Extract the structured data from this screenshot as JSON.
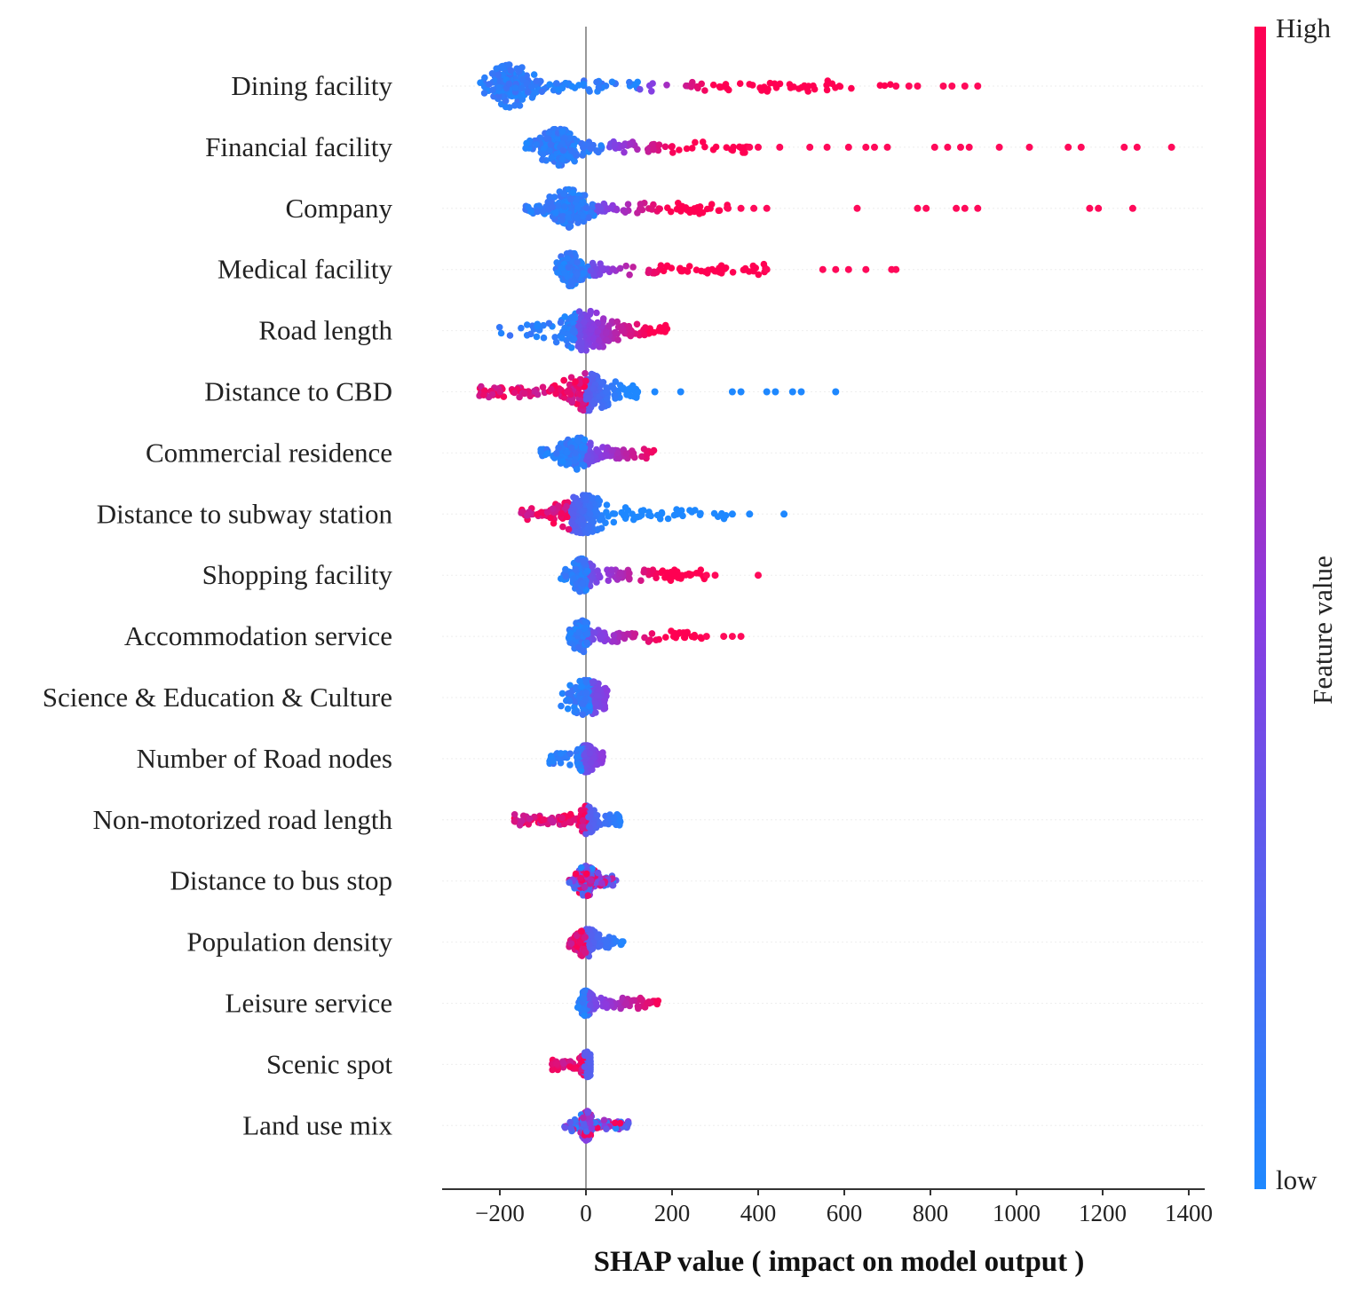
{
  "chart_data": {
    "type": "scatter",
    "subtype": "shap-beeswarm",
    "xlabel": "SHAP  value  ( impact on model output )",
    "xlim": [
      -330,
      1430
    ],
    "xticks": [
      -200,
      0,
      200,
      400,
      600,
      800,
      1000,
      1200,
      1400
    ],
    "xtick_labels": [
      "−200",
      "0",
      "200",
      "400",
      "600",
      "800",
      "1000",
      "1200",
      "1400"
    ],
    "colorbar": {
      "title": "Feature value",
      "high_label": "High",
      "low_label": "low",
      "low_color": "#1e88ff",
      "high_color": "#ff0052"
    },
    "features": [
      {
        "name": "Dining facility",
        "min": -250,
        "max": 920,
        "core": [
          -200,
          -150
        ],
        "width": 1.0,
        "blue_end": 120,
        "direction": "pos",
        "outliers": [
          [
            720,
            1
          ],
          [
            750,
            1
          ],
          [
            770,
            1
          ],
          [
            830,
            1
          ],
          [
            850,
            1
          ],
          [
            880,
            1
          ],
          [
            910,
            1
          ]
        ]
      },
      {
        "name": "Financial facility",
        "min": -140,
        "max": 1360,
        "core": [
          -90,
          -40
        ],
        "width": 0.8,
        "blue_end": 40,
        "direction": "pos",
        "outliers": [
          [
            380,
            1
          ],
          [
            400,
            1
          ],
          [
            450,
            1
          ],
          [
            520,
            1
          ],
          [
            560,
            1
          ],
          [
            610,
            1
          ],
          [
            650,
            1
          ],
          [
            670,
            1
          ],
          [
            700,
            1
          ],
          [
            810,
            1
          ],
          [
            840,
            1
          ],
          [
            870,
            1
          ],
          [
            890,
            1
          ],
          [
            960,
            1
          ],
          [
            1030,
            1
          ],
          [
            1120,
            1
          ],
          [
            1150,
            1
          ],
          [
            1250,
            1
          ],
          [
            1280,
            1
          ],
          [
            1360,
            1
          ]
        ]
      },
      {
        "name": "Company",
        "min": -140,
        "max": 1280,
        "core": [
          -60,
          -20
        ],
        "width": 0.85,
        "blue_end": 20,
        "direction": "pos",
        "outliers": [
          [
            330,
            1
          ],
          [
            360,
            1
          ],
          [
            390,
            1
          ],
          [
            420,
            1
          ],
          [
            630,
            1
          ],
          [
            770,
            1
          ],
          [
            790,
            1
          ],
          [
            860,
            1
          ],
          [
            880,
            1
          ],
          [
            910,
            1
          ],
          [
            1170,
            1
          ],
          [
            1190,
            1
          ],
          [
            1270,
            1
          ]
        ]
      },
      {
        "name": "Medical facility",
        "min": -70,
        "max": 720,
        "core": [
          -50,
          -20
        ],
        "width": 0.7,
        "blue_end": 10,
        "direction": "pos",
        "outliers": [
          [
            420,
            1
          ],
          [
            550,
            1
          ],
          [
            580,
            1
          ],
          [
            610,
            1
          ],
          [
            650,
            1
          ],
          [
            710,
            1
          ],
          [
            720,
            1
          ]
        ]
      },
      {
        "name": "Road length",
        "min": -210,
        "max": 190,
        "core": [
          -30,
          30
        ],
        "width": 0.9,
        "blue_end": -20,
        "direction": "pos",
        "outliers": []
      },
      {
        "name": "Distance to CBD",
        "min": -250,
        "max": 580,
        "core": [
          -20,
          30
        ],
        "width": 0.85,
        "blue_end": 0,
        "direction": "neg",
        "outliers": [
          [
            120,
            1
          ],
          [
            160,
            1
          ],
          [
            220,
            1
          ],
          [
            340,
            1
          ],
          [
            360,
            1
          ],
          [
            420,
            1
          ],
          [
            440,
            1
          ],
          [
            480,
            1
          ],
          [
            500,
            1
          ],
          [
            580,
            1
          ]
        ]
      },
      {
        "name": "Commercial residence",
        "min": -110,
        "max": 160,
        "core": [
          -40,
          -10
        ],
        "width": 0.7,
        "blue_end": 0,
        "direction": "pos",
        "outliers": []
      },
      {
        "name": "Distance to subway station",
        "min": -160,
        "max": 460,
        "core": [
          -30,
          20
        ],
        "width": 0.85,
        "blue_end": -40,
        "direction": "neg",
        "outliers": [
          [
            340,
            1
          ],
          [
            380,
            1
          ],
          [
            460,
            1
          ]
        ]
      },
      {
        "name": "Shopping facility",
        "min": -60,
        "max": 400,
        "core": [
          -20,
          0
        ],
        "width": 0.7,
        "blue_end": 5,
        "direction": "pos",
        "outliers": [
          [
            280,
            1
          ],
          [
            300,
            1
          ],
          [
            400,
            1
          ]
        ]
      },
      {
        "name": "Accommodation service",
        "min": -40,
        "max": 360,
        "core": [
          -20,
          0
        ],
        "width": 0.65,
        "blue_end": 5,
        "direction": "pos",
        "outliers": [
          [
            280,
            1
          ],
          [
            320,
            1
          ],
          [
            340,
            1
          ],
          [
            360,
            1
          ]
        ]
      },
      {
        "name": "Science & Education & Culture",
        "min": -60,
        "max": 50,
        "core": [
          -20,
          20
        ],
        "width": 0.75,
        "blue_end": 10,
        "direction": "pos",
        "outliers": []
      },
      {
        "name": "Number of Road nodes",
        "min": -90,
        "max": 40,
        "core": [
          -10,
          10
        ],
        "width": 0.5,
        "blue_end": -5,
        "direction": "pos",
        "outliers": []
      },
      {
        "name": "Non-motorized road length",
        "min": -170,
        "max": 80,
        "core": [
          -5,
          10
        ],
        "width": 0.55,
        "blue_end": 0,
        "direction": "neg",
        "outliers": []
      },
      {
        "name": "Distance to bus stop",
        "min": -40,
        "max": 70,
        "core": [
          -10,
          10
        ],
        "width": 0.6,
        "blue_end": 0,
        "direction": "mixed",
        "outliers": []
      },
      {
        "name": "Population density",
        "min": -40,
        "max": 90,
        "core": [
          -10,
          10
        ],
        "width": 0.6,
        "blue_end": 0,
        "direction": "neg",
        "outliers": []
      },
      {
        "name": "Leisure service",
        "min": -20,
        "max": 170,
        "core": [
          -5,
          5
        ],
        "width": 0.45,
        "blue_end": 5,
        "direction": "pos",
        "outliers": []
      },
      {
        "name": "Scenic spot",
        "min": -80,
        "max": 10,
        "core": [
          0,
          5
        ],
        "width": 0.45,
        "blue_end": -5,
        "direction": "neg",
        "outliers": []
      },
      {
        "name": "Land use mix",
        "min": -50,
        "max": 100,
        "core": [
          -5,
          5
        ],
        "width": 0.6,
        "blue_end": 10,
        "direction": "mixed",
        "outliers": []
      }
    ]
  }
}
